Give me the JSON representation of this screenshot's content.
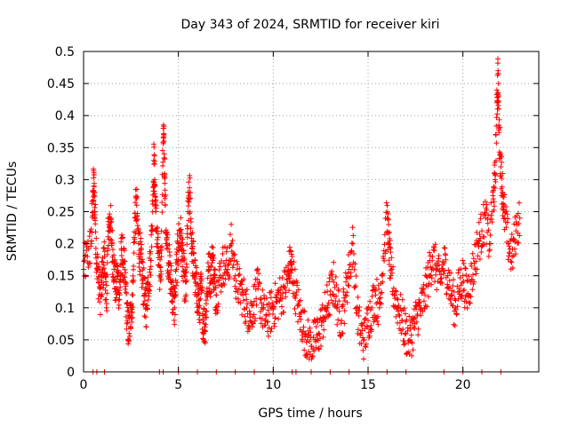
{
  "chart_data": {
    "type": "scatter",
    "title": "Day 343 of 2024, SRMTID for receiver kiri",
    "xlabel": "GPS time / hours",
    "ylabel": "SRMTID / TECUs",
    "xlim": [
      0,
      24
    ],
    "ylim": [
      0,
      0.5
    ],
    "xticks": [
      0,
      5,
      10,
      15,
      20
    ],
    "xtick_labels": [
      "0",
      "5",
      "10",
      "15",
      "20"
    ],
    "yticks": [
      0,
      0.05,
      0.1,
      0.15,
      0.2,
      0.25,
      0.3,
      0.35,
      0.4,
      0.45,
      0.5
    ],
    "ytick_labels": [
      "0",
      "0.05",
      "0.1",
      "0.15",
      "0.2",
      "0.25",
      "0.3",
      "0.35",
      "0.4",
      "0.45",
      "0.5"
    ],
    "grid": true,
    "marker": "+",
    "color": "#ff0000",
    "series": [
      {
        "name": "SRMTID",
        "points": [
          [
            0.0,
            0.16
          ],
          [
            0.2,
            0.18
          ],
          [
            0.4,
            0.2
          ],
          [
            0.5,
            0.28
          ],
          [
            0.55,
            0.29
          ],
          [
            0.6,
            0.25
          ],
          [
            0.7,
            0.17
          ],
          [
            0.8,
            0.14
          ],
          [
            0.9,
            0.12
          ],
          [
            1.0,
            0.15
          ],
          [
            1.1,
            0.18
          ],
          [
            1.2,
            0.1
          ],
          [
            1.3,
            0.22
          ],
          [
            1.4,
            0.24
          ],
          [
            1.5,
            0.2
          ],
          [
            1.6,
            0.16
          ],
          [
            1.7,
            0.13
          ],
          [
            1.8,
            0.15
          ],
          [
            1.9,
            0.12
          ],
          [
            2.0,
            0.19
          ],
          [
            2.1,
            0.17
          ],
          [
            2.2,
            0.14
          ],
          [
            2.3,
            0.08
          ],
          [
            2.4,
            0.06
          ],
          [
            2.5,
            0.1
          ],
          [
            2.6,
            0.12
          ],
          [
            2.7,
            0.24
          ],
          [
            2.8,
            0.26
          ],
          [
            2.9,
            0.2
          ],
          [
            3.0,
            0.18
          ],
          [
            3.1,
            0.15
          ],
          [
            3.2,
            0.12
          ],
          [
            3.3,
            0.1
          ],
          [
            3.4,
            0.14
          ],
          [
            3.5,
            0.16
          ],
          [
            3.6,
            0.22
          ],
          [
            3.7,
            0.33
          ],
          [
            3.75,
            0.3
          ],
          [
            3.8,
            0.25
          ],
          [
            3.9,
            0.2
          ],
          [
            4.0,
            0.15
          ],
          [
            4.1,
            0.18
          ],
          [
            4.2,
            0.38
          ],
          [
            4.25,
            0.34
          ],
          [
            4.3,
            0.26
          ],
          [
            4.4,
            0.2
          ],
          [
            4.5,
            0.17
          ],
          [
            4.6,
            0.14
          ],
          [
            4.7,
            0.12
          ],
          [
            4.8,
            0.1
          ],
          [
            4.9,
            0.16
          ],
          [
            5.0,
            0.2
          ],
          [
            5.1,
            0.22
          ],
          [
            5.2,
            0.18
          ],
          [
            5.3,
            0.15
          ],
          [
            5.4,
            0.12
          ],
          [
            5.5,
            0.25
          ],
          [
            5.6,
            0.28
          ],
          [
            5.7,
            0.2
          ],
          [
            5.8,
            0.17
          ],
          [
            5.9,
            0.14
          ],
          [
            6.0,
            0.12
          ],
          [
            6.1,
            0.1
          ],
          [
            6.2,
            0.13
          ],
          [
            6.3,
            0.08
          ],
          [
            6.4,
            0.07
          ],
          [
            6.5,
            0.12
          ],
          [
            6.6,
            0.16
          ],
          [
            6.7,
            0.15
          ],
          [
            6.8,
            0.18
          ],
          [
            6.9,
            0.14
          ],
          [
            7.0,
            0.12
          ],
          [
            7.2,
            0.15
          ],
          [
            7.4,
            0.17
          ],
          [
            7.6,
            0.16
          ],
          [
            7.8,
            0.2
          ],
          [
            8.0,
            0.15
          ],
          [
            8.2,
            0.13
          ],
          [
            8.4,
            0.12
          ],
          [
            8.6,
            0.1
          ],
          [
            8.8,
            0.09
          ],
          [
            9.0,
            0.11
          ],
          [
            9.2,
            0.13
          ],
          [
            9.4,
            0.1
          ],
          [
            9.6,
            0.08
          ],
          [
            9.8,
            0.09
          ],
          [
            10.0,
            0.1
          ],
          [
            10.2,
            0.11
          ],
          [
            10.4,
            0.12
          ],
          [
            10.6,
            0.13
          ],
          [
            10.8,
            0.15
          ],
          [
            10.9,
            0.17
          ],
          [
            11.0,
            0.16
          ],
          [
            11.2,
            0.12
          ],
          [
            11.4,
            0.09
          ],
          [
            11.6,
            0.07
          ],
          [
            11.8,
            0.05
          ],
          [
            12.0,
            0.04
          ],
          [
            12.2,
            0.05
          ],
          [
            12.4,
            0.06
          ],
          [
            12.6,
            0.08
          ],
          [
            12.8,
            0.1
          ],
          [
            13.0,
            0.12
          ],
          [
            13.2,
            0.14
          ],
          [
            13.4,
            0.1
          ],
          [
            13.6,
            0.08
          ],
          [
            13.8,
            0.12
          ],
          [
            14.0,
            0.16
          ],
          [
            14.2,
            0.2
          ],
          [
            14.4,
            0.1
          ],
          [
            14.6,
            0.06
          ],
          [
            14.8,
            0.05
          ],
          [
            15.0,
            0.08
          ],
          [
            15.2,
            0.1
          ],
          [
            15.4,
            0.12
          ],
          [
            15.6,
            0.1
          ],
          [
            15.8,
            0.18
          ],
          [
            16.0,
            0.24
          ],
          [
            16.1,
            0.2
          ],
          [
            16.2,
            0.15
          ],
          [
            16.4,
            0.12
          ],
          [
            16.6,
            0.1
          ],
          [
            16.8,
            0.08
          ],
          [
            17.0,
            0.06
          ],
          [
            17.2,
            0.05
          ],
          [
            17.4,
            0.07
          ],
          [
            17.6,
            0.09
          ],
          [
            17.8,
            0.1
          ],
          [
            18.0,
            0.12
          ],
          [
            18.2,
            0.15
          ],
          [
            18.4,
            0.18
          ],
          [
            18.6,
            0.16
          ],
          [
            18.8,
            0.14
          ],
          [
            19.0,
            0.17
          ],
          [
            19.2,
            0.15
          ],
          [
            19.4,
            0.12
          ],
          [
            19.6,
            0.1
          ],
          [
            19.8,
            0.13
          ],
          [
            20.0,
            0.15
          ],
          [
            20.2,
            0.12
          ],
          [
            20.4,
            0.14
          ],
          [
            20.6,
            0.17
          ],
          [
            20.8,
            0.2
          ],
          [
            21.0,
            0.22
          ],
          [
            21.2,
            0.24
          ],
          [
            21.4,
            0.2
          ],
          [
            21.6,
            0.27
          ],
          [
            21.7,
            0.3
          ],
          [
            21.8,
            0.42
          ],
          [
            21.85,
            0.47
          ],
          [
            21.9,
            0.38
          ],
          [
            22.0,
            0.32
          ],
          [
            22.1,
            0.28
          ],
          [
            22.2,
            0.24
          ],
          [
            22.4,
            0.2
          ],
          [
            22.6,
            0.18
          ],
          [
            22.8,
            0.22
          ],
          [
            23.0,
            0.24
          ]
        ],
        "zero_points": [
          0.5,
          0.7,
          1.1,
          4.0,
          4.2,
          5.0,
          6.0,
          7.0,
          8.0,
          9.0,
          10.0,
          11.0,
          11.2,
          12.0,
          13.0,
          14.0,
          15.0,
          16.0,
          17.0,
          19.0,
          20.0,
          21.0,
          22.0
        ]
      }
    ]
  }
}
